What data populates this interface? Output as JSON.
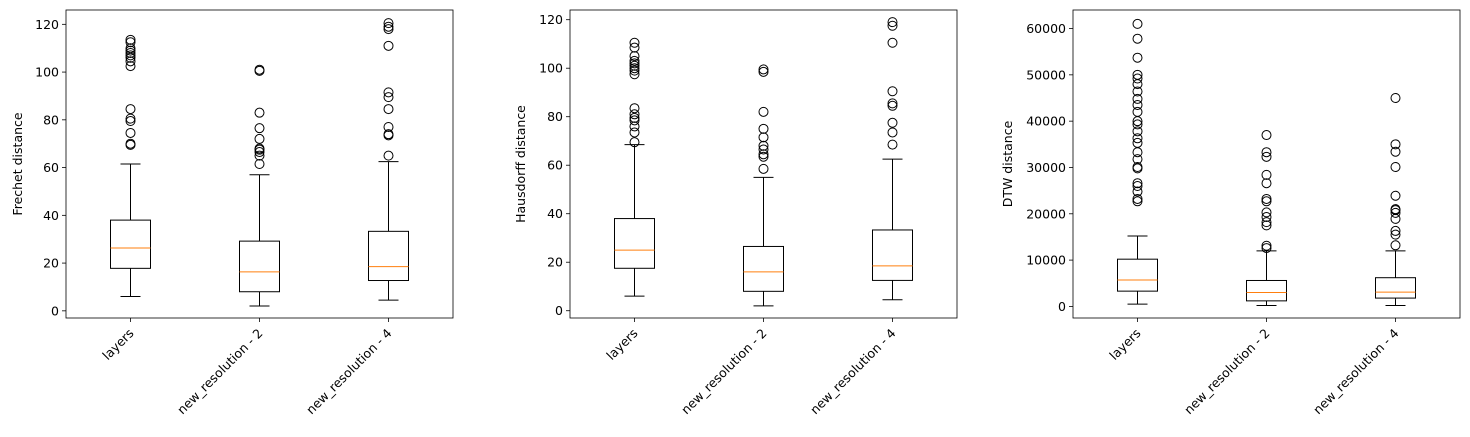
{
  "chart_data": [
    {
      "type": "box",
      "ylabel": "Frechet distance",
      "categories": [
        "layers",
        "new_resolution - 2",
        "new_resolution - 4"
      ],
      "ylim": [
        -3,
        126
      ],
      "yticks": [
        0,
        20,
        40,
        60,
        80,
        100,
        120
      ],
      "tick_labels": [
        "0",
        "20",
        "40",
        "60",
        "80",
        "100",
        "120"
      ],
      "boxes": [
        {
          "whislo": 6,
          "q1": 17.8,
          "med": 26.3,
          "q3": 38,
          "whishi": 61.5,
          "fliers": [
            69.5,
            70,
            74.5,
            79.5,
            80.5,
            84.5,
            102.5,
            104.5,
            106,
            107,
            108,
            109,
            110,
            112.5,
            113.5
          ]
        },
        {
          "whislo": 2,
          "q1": 8,
          "med": 16.3,
          "q3": 29.2,
          "whishi": 57,
          "fliers": [
            61.5,
            65,
            66.5,
            67.5,
            68,
            72,
            76.5,
            83,
            100.5,
            101
          ]
        },
        {
          "whislo": 4.5,
          "q1": 12.7,
          "med": 18.5,
          "q3": 33.3,
          "whishi": 62.5,
          "fliers": [
            65,
            73.5,
            74,
            77,
            84.5,
            89.5,
            91.5,
            111,
            118,
            119,
            120.5
          ]
        }
      ]
    },
    {
      "type": "box",
      "ylabel": "Hausdorff distance",
      "categories": [
        "layers",
        "new_resolution - 2",
        "new_resolution - 4"
      ],
      "ylim": [
        -3,
        124
      ],
      "yticks": [
        0,
        20,
        40,
        60,
        80,
        100,
        120
      ],
      "tick_labels": [
        "0",
        "20",
        "40",
        "60",
        "80",
        "100",
        "120"
      ],
      "boxes": [
        {
          "whislo": 6,
          "q1": 17.5,
          "med": 25,
          "q3": 38,
          "whishi": 68.5,
          "fliers": [
            69.5,
            73.5,
            76,
            78.5,
            79.5,
            81,
            83.5,
            97.5,
            99,
            100,
            101,
            102,
            103,
            105,
            108.5,
            110.5
          ]
        },
        {
          "whislo": 2,
          "q1": 8,
          "med": 16,
          "q3": 26.5,
          "whishi": 55,
          "fliers": [
            58.5,
            63.5,
            64.5,
            66.5,
            68,
            71.5,
            75,
            82,
            98.5,
            99.5
          ]
        },
        {
          "whislo": 4.5,
          "q1": 12.5,
          "med": 18.5,
          "q3": 33.3,
          "whishi": 62.5,
          "fliers": [
            68.5,
            73.5,
            77.5,
            84.5,
            85.5,
            90.5,
            110.5,
            117.5,
            119
          ]
        }
      ]
    },
    {
      "type": "box",
      "ylabel": "DTW distance",
      "categories": [
        "layers",
        "new_resolution - 2",
        "new_resolution - 4"
      ],
      "ylim": [
        -2500,
        64000
      ],
      "yticks": [
        0,
        10000,
        20000,
        30000,
        40000,
        50000,
        60000
      ],
      "tick_labels": [
        "0",
        "10000",
        "20000",
        "30000",
        "40000",
        "50000",
        "60000"
      ],
      "boxes": [
        {
          "whislo": 500,
          "q1": 3300,
          "med": 5700,
          "q3": 10200,
          "whishi": 15200,
          "fliers": [
            22700,
            23200,
            24800,
            26000,
            26600,
            29800,
            30100,
            31800,
            33300,
            35300,
            36300,
            37800,
            39300,
            40000,
            42000,
            43500,
            44800,
            46400,
            48000,
            49200,
            50000,
            53700,
            57800,
            61000
          ]
        },
        {
          "whislo": 200,
          "q1": 1200,
          "med": 3000,
          "q3": 5600,
          "whishi": 12000,
          "fliers": [
            12600,
            13100,
            17500,
            18200,
            19300,
            20300,
            22700,
            23200,
            26600,
            28400,
            32300,
            33300,
            37000
          ]
        },
        {
          "whislo": 200,
          "q1": 1800,
          "med": 3100,
          "q3": 6200,
          "whishi": 12000,
          "fliers": [
            13200,
            15500,
            16300,
            18900,
            20200,
            20800,
            21000,
            23900,
            30100,
            33400,
            35000,
            45000
          ]
        }
      ]
    }
  ],
  "colors": {
    "box": "#000000",
    "median": "#ff7f0e",
    "background": "#ffffff"
  }
}
